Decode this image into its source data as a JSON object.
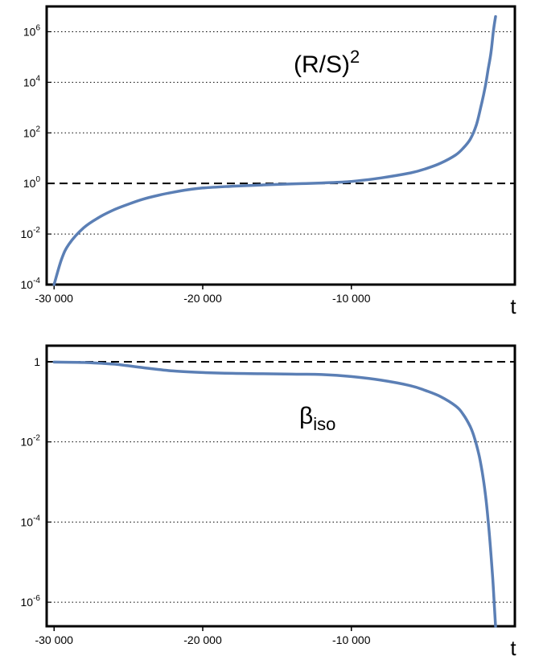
{
  "chart_data": [
    {
      "type": "line",
      "annotation": {
        "base": "(R/S)",
        "sup": "2"
      },
      "xlabel": "t",
      "xlim": [
        -30500,
        1000
      ],
      "x_ticks": [
        -30000,
        -20000,
        -10000
      ],
      "x_tick_labels": [
        "-30 000",
        "-20 000",
        "-10 000"
      ],
      "y_scale": "log",
      "ylim_exponent": [
        -4,
        7
      ],
      "y_ticks": [
        {
          "exp": -4,
          "base": "10",
          "sup": "-4"
        },
        {
          "exp": -2,
          "base": "10",
          "sup": "-2"
        },
        {
          "exp": 0,
          "base": "10",
          "sup": "0"
        },
        {
          "exp": 2,
          "base": "10",
          "sup": "2"
        },
        {
          "exp": 4,
          "base": "10",
          "sup": "4"
        },
        {
          "exp": 6,
          "base": "10",
          "sup": "6"
        }
      ],
      "reference_line_exponent": 0,
      "grid": "dotted horizontal",
      "series": [
        {
          "color": "#5b7fb5",
          "x": [
            -30000,
            -29500,
            -29000,
            -28000,
            -27000,
            -26000,
            -25000,
            -24000,
            -23000,
            -22000,
            -21000,
            -20000,
            -18000,
            -16000,
            -14000,
            -12000,
            -10000,
            -8000,
            -6000,
            -5000,
            -4000,
            -3000,
            -2500,
            -2000,
            -1600,
            -1300,
            -1000,
            -800,
            -600,
            -450,
            -300
          ],
          "log10_y": [
            -4.0,
            -3.0,
            -2.4,
            -1.75,
            -1.35,
            -1.05,
            -0.82,
            -0.62,
            -0.47,
            -0.35,
            -0.25,
            -0.18,
            -0.11,
            -0.06,
            -0.02,
            0.02,
            0.08,
            0.22,
            0.42,
            0.58,
            0.8,
            1.12,
            1.38,
            1.75,
            2.3,
            3.0,
            3.8,
            4.5,
            5.2,
            6.0,
            6.6
          ]
        }
      ]
    },
    {
      "type": "line",
      "annotation": {
        "base": "β",
        "sub": "iso"
      },
      "xlabel": "t",
      "xlim": [
        -30500,
        1000
      ],
      "x_ticks": [
        -30000,
        -20000,
        -10000
      ],
      "x_tick_labels": [
        "-30 000",
        "-20 000",
        "-10 000"
      ],
      "y_scale": "log",
      "ylim_exponent": [
        -6.6,
        0.4
      ],
      "y_ticks": [
        {
          "exp": 0,
          "base": "1",
          "sup": ""
        },
        {
          "exp": -2,
          "base": "10",
          "sup": "-2"
        },
        {
          "exp": -4,
          "base": "10",
          "sup": "-4"
        },
        {
          "exp": -6,
          "base": "10",
          "sup": "-6"
        }
      ],
      "reference_line_exponent": 0,
      "grid": "dotted horizontal",
      "series": [
        {
          "color": "#5b7fb5",
          "x": [
            -30000,
            -28000,
            -26000,
            -24000,
            -22000,
            -20000,
            -18000,
            -16000,
            -14000,
            -12000,
            -10000,
            -8000,
            -6000,
            -5000,
            -4000,
            -3000,
            -2500,
            -2000,
            -1700,
            -1400,
            -1200,
            -1000,
            -800,
            -650,
            -500,
            -400,
            -300
          ],
          "log10_y": [
            -0.01,
            -0.02,
            -0.06,
            -0.15,
            -0.23,
            -0.27,
            -0.29,
            -0.3,
            -0.31,
            -0.32,
            -0.37,
            -0.46,
            -0.6,
            -0.72,
            -0.87,
            -1.1,
            -1.3,
            -1.62,
            -1.92,
            -2.35,
            -2.75,
            -3.25,
            -3.95,
            -4.6,
            -5.35,
            -5.95,
            -6.6
          ]
        }
      ]
    }
  ]
}
